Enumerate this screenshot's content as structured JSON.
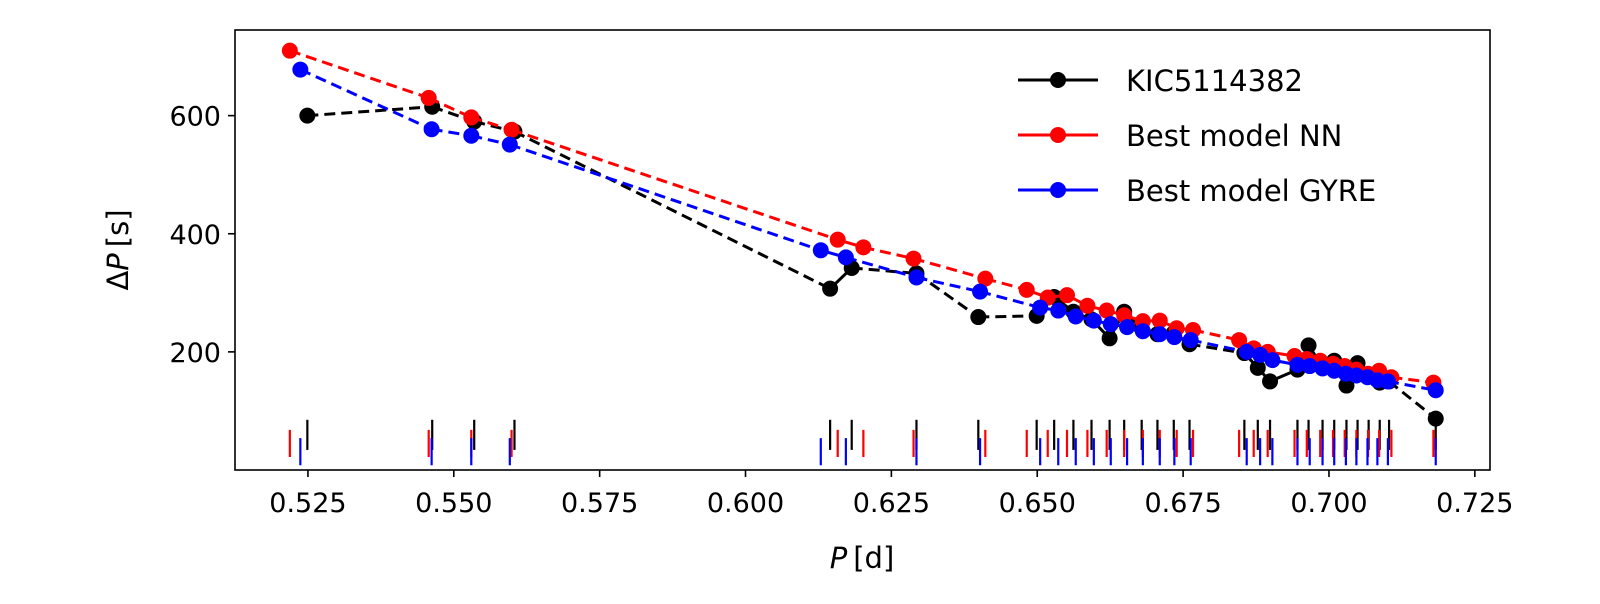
{
  "chart_data": {
    "type": "line",
    "title": "",
    "xlabel": {
      "symbol": "P",
      "unit": "[d]"
    },
    "ylabel": {
      "symbol": "ΔP",
      "unit": "[s]"
    },
    "xlim": [
      0.5125,
      0.7276
    ],
    "ylim": [
      0,
      745
    ],
    "xticks": [
      0.525,
      0.55,
      0.575,
      0.6,
      0.625,
      0.65,
      0.675,
      0.7,
      0.725
    ],
    "xtick_labels": [
      "0.525",
      "0.550",
      "0.575",
      "0.600",
      "0.625",
      "0.650",
      "0.675",
      "0.700",
      "0.725"
    ],
    "yticks": [
      200,
      400,
      600
    ],
    "ytick_labels": [
      "200",
      "400",
      "600"
    ],
    "grid": false,
    "legend_position": "top-right",
    "series": [
      {
        "name": "KIC5114382",
        "color": "#000000",
        "period_marker_range": [
          34,
          85
        ],
        "x": [
          0.5249,
          0.5463,
          0.5535,
          0.5604,
          0.6145,
          0.6182,
          0.6293,
          0.6399,
          0.6499,
          0.6529,
          0.6562,
          0.6593,
          0.6624,
          0.6649,
          0.6679,
          0.6706,
          0.6734,
          0.6761,
          0.6855,
          0.6878,
          0.6899,
          0.6946,
          0.6965,
          0.6989,
          0.7009,
          0.703,
          0.7049,
          0.7068,
          0.7087,
          0.7103,
          0.7183
        ],
        "y": [
          600,
          615,
          590,
          573,
          307,
          342,
          333,
          259,
          261,
          293,
          268,
          255,
          223,
          268,
          240,
          230,
          232,
          213,
          198,
          173,
          150,
          170,
          211,
          175,
          185,
          143,
          181,
          158,
          148,
          150,
          87
        ]
      },
      {
        "name": "Best model NN",
        "color": "#ff0000",
        "period_marker_range": [
          22,
          68
        ],
        "x": [
          0.5219,
          0.5457,
          0.553,
          0.5599,
          0.6158,
          0.6202,
          0.6288,
          0.6411,
          0.6482,
          0.6518,
          0.6551,
          0.6586,
          0.6619,
          0.6649,
          0.6681,
          0.671,
          0.6739,
          0.6767,
          0.6846,
          0.6871,
          0.6895,
          0.6941,
          0.6962,
          0.6985,
          0.7007,
          0.7027,
          0.7047,
          0.7067,
          0.7086,
          0.7107,
          0.7179
        ],
        "y": [
          710,
          630,
          597,
          576,
          390,
          377,
          358,
          324,
          305,
          292,
          296,
          278,
          270,
          262,
          252,
          253,
          240,
          237,
          220,
          206,
          200,
          193,
          188,
          185,
          180,
          176,
          170,
          163,
          168,
          157,
          148
        ]
      },
      {
        "name": "Best model GYRE",
        "color": "#0000ff",
        "period_marker_range": [
          8,
          54
        ],
        "x": [
          0.5237,
          0.5462,
          0.553,
          0.5596,
          0.6129,
          0.6172,
          0.6293,
          0.6402,
          0.6505,
          0.6536,
          0.6566,
          0.6597,
          0.6626,
          0.6654,
          0.6681,
          0.671,
          0.6735,
          0.6763,
          0.6859,
          0.6882,
          0.6903,
          0.6946,
          0.6967,
          0.6989,
          0.7009,
          0.7029,
          0.7047,
          0.7066,
          0.7083,
          0.7101,
          0.7183
        ],
        "y": [
          678,
          577,
          566,
          551,
          372,
          360,
          326,
          302,
          275,
          270,
          260,
          253,
          247,
          242,
          235,
          230,
          225,
          220,
          200,
          195,
          186,
          178,
          176,
          172,
          168,
          163,
          160,
          157,
          152,
          150,
          135
        ]
      }
    ]
  }
}
